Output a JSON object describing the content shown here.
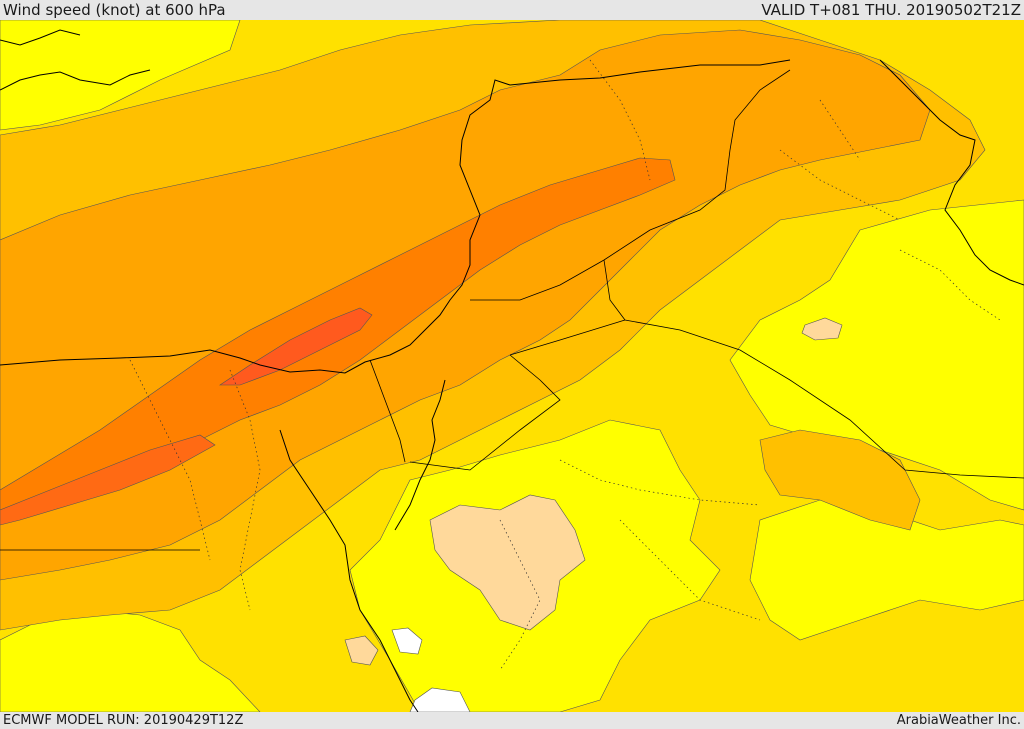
{
  "header": {
    "title": "Wind speed (knot) at 600 hPa",
    "valid": "VALID T+081 THU. 20190502T21Z"
  },
  "footer": {
    "model_run": "ECMWF MODEL RUN: 20190429T12Z",
    "credit": "ArabiaWeather Inc."
  },
  "colors": {
    "bright_yellow": "#ffff00",
    "yellow": "#ffe100",
    "gold": "#ffc000",
    "light_orange": "#ffa500",
    "orange": "#ff8000",
    "red_orange": "#ff5a1e",
    "pale_peach": "#ffd99b",
    "white": "#ffffff"
  }
}
